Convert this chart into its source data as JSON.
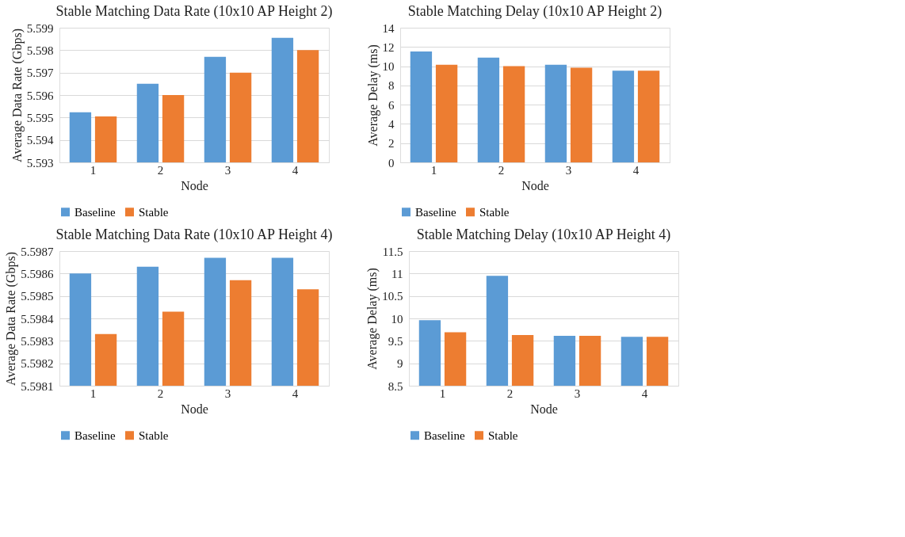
{
  "chart_data": [
    {
      "type": "bar",
      "title": "Stable Matching Data Rate (10x10 AP Height 2)",
      "xlabel": "Node",
      "ylabel": "Average Data Rate (Gbps)",
      "categories": [
        "1",
        "2",
        "3",
        "4"
      ],
      "series": [
        {
          "name": "Baseline",
          "color": "#5b9bd5",
          "values": [
            5.59523,
            5.5965,
            5.5977,
            5.59855
          ]
        },
        {
          "name": "Stable",
          "color": "#ed7d31",
          "values": [
            5.59505,
            5.596,
            5.597,
            5.598
          ]
        }
      ],
      "ylim": [
        5.593,
        5.599
      ],
      "yticks": [
        5.593,
        5.594,
        5.595,
        5.596,
        5.597,
        5.598,
        5.599
      ],
      "grid": "y",
      "legend": "bottom"
    },
    {
      "type": "bar",
      "title": "Stable Matching Delay (10x10 AP Height 2)",
      "xlabel": "Node",
      "ylabel": "Average Delay (ms)",
      "categories": [
        "1",
        "2",
        "3",
        "4"
      ],
      "series": [
        {
          "name": "Baseline",
          "color": "#5b9bd5",
          "values": [
            11.52,
            10.9,
            10.16,
            9.54
          ]
        },
        {
          "name": "Stable",
          "color": "#ed7d31",
          "values": [
            10.16,
            10.0,
            9.84,
            9.54
          ]
        }
      ],
      "ylim": [
        0,
        14
      ],
      "yticks": [
        0,
        2,
        4,
        6,
        8,
        10,
        12,
        14
      ],
      "grid": "y",
      "legend": "bottom"
    },
    {
      "type": "bar",
      "title": "Stable Matching Data Rate (10x10 AP Height 4)",
      "xlabel": "Node",
      "ylabel": "Average Data Rate (Gbps)",
      "categories": [
        "1",
        "2",
        "3",
        "4"
      ],
      "series": [
        {
          "name": "Baseline",
          "color": "#5b9bd5",
          "values": [
            5.5986,
            5.59863,
            5.59867,
            5.59867
          ]
        },
        {
          "name": "Stable",
          "color": "#ed7d31",
          "values": [
            5.59833,
            5.59843,
            5.59857,
            5.59853
          ]
        }
      ],
      "ylim": [
        5.5981,
        5.5987
      ],
      "yticks": [
        5.5981,
        5.5982,
        5.5983,
        5.5984,
        5.5985,
        5.5986,
        5.5987
      ],
      "grid": "y",
      "legend": "bottom"
    },
    {
      "type": "bar",
      "title": "Stable Matching Delay (10x10 AP Height 4)",
      "xlabel": "Node",
      "ylabel": "Average Delay (ms)",
      "categories": [
        "1",
        "2",
        "3",
        "4"
      ],
      "series": [
        {
          "name": "Baseline",
          "color": "#5b9bd5",
          "values": [
            9.96,
            10.95,
            9.61,
            9.59
          ]
        },
        {
          "name": "Stable",
          "color": "#ed7d31",
          "values": [
            9.69,
            9.63,
            9.61,
            9.59
          ]
        }
      ],
      "ylim": [
        8.5,
        11.5
      ],
      "yticks": [
        8.5,
        9,
        9.5,
        10,
        10.5,
        11,
        11.5
      ],
      "grid": "y",
      "legend": "bottom"
    }
  ]
}
